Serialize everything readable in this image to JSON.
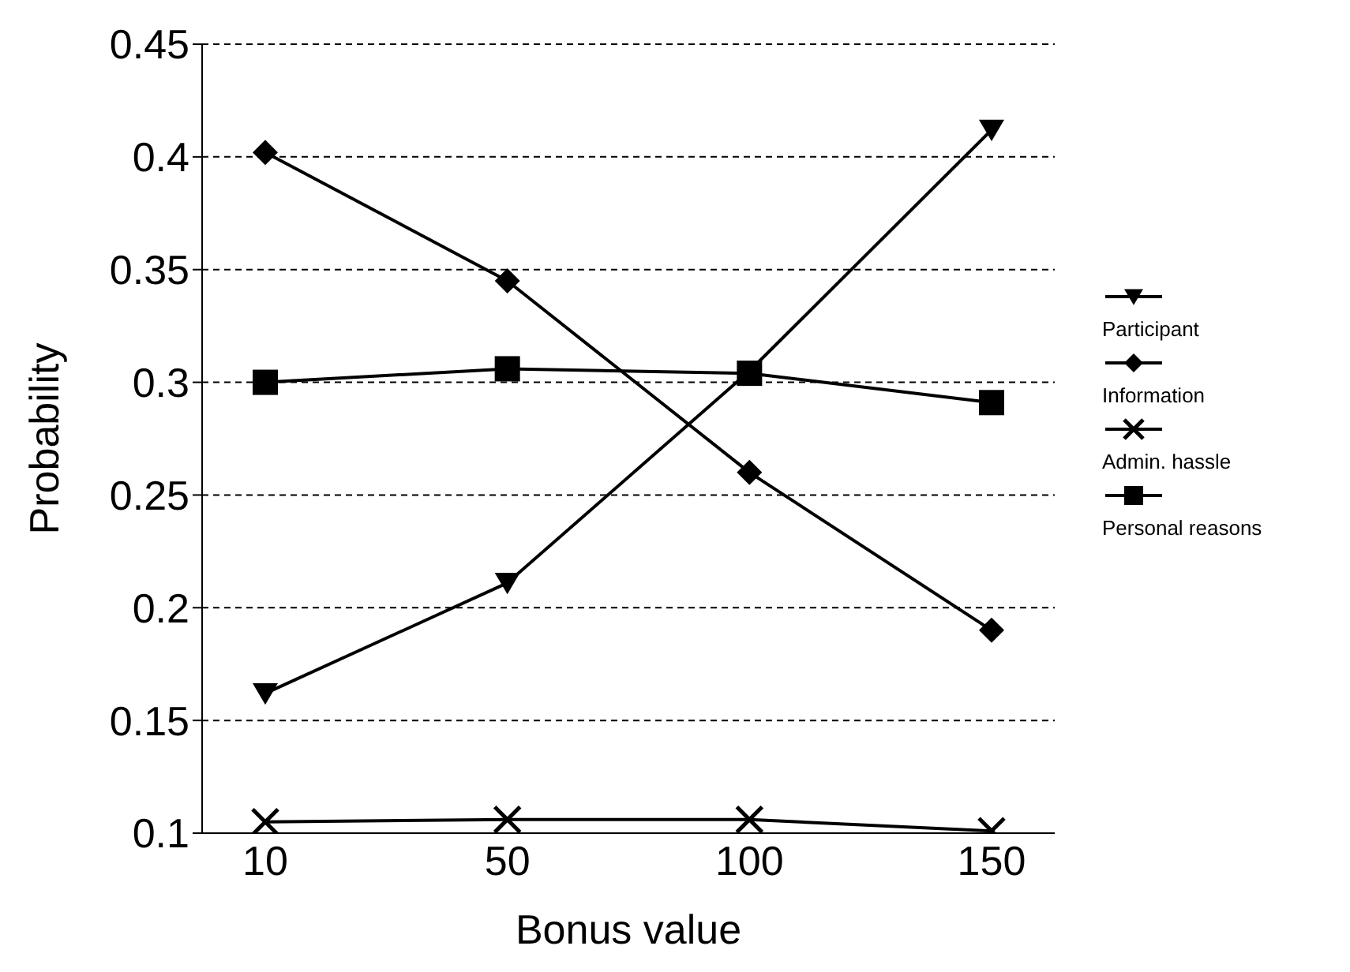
{
  "chart_data": {
    "type": "line",
    "xlabel": "Bonus value",
    "ylabel": "Probability",
    "categories": [
      "10",
      "50",
      "100",
      "150"
    ],
    "series": [
      {
        "name": "Participant",
        "color": "#000000",
        "marker": "triangle",
        "values": [
          0.162,
          0.211,
          0.305,
          0.412
        ]
      },
      {
        "name": "Information",
        "color": "#000000",
        "marker": "diamond",
        "values": [
          0.402,
          0.345,
          0.26,
          0.19
        ]
      },
      {
        "name": "Admin. hassle",
        "color": "#000000",
        "marker": "cross",
        "values": [
          0.105,
          0.106,
          0.106,
          0.101
        ]
      },
      {
        "name": "Personal reasons",
        "color": "#000000",
        "marker": "square",
        "values": [
          0.3,
          0.306,
          0.304,
          0.291
        ]
      }
    ],
    "ylim": [
      0.1,
      0.45
    ],
    "yticks": [
      0.1,
      0.15,
      0.2,
      0.25,
      0.3,
      0.35,
      0.4,
      0.45
    ],
    "grid": "y",
    "legend": "right",
    "line_style": "solid"
  }
}
